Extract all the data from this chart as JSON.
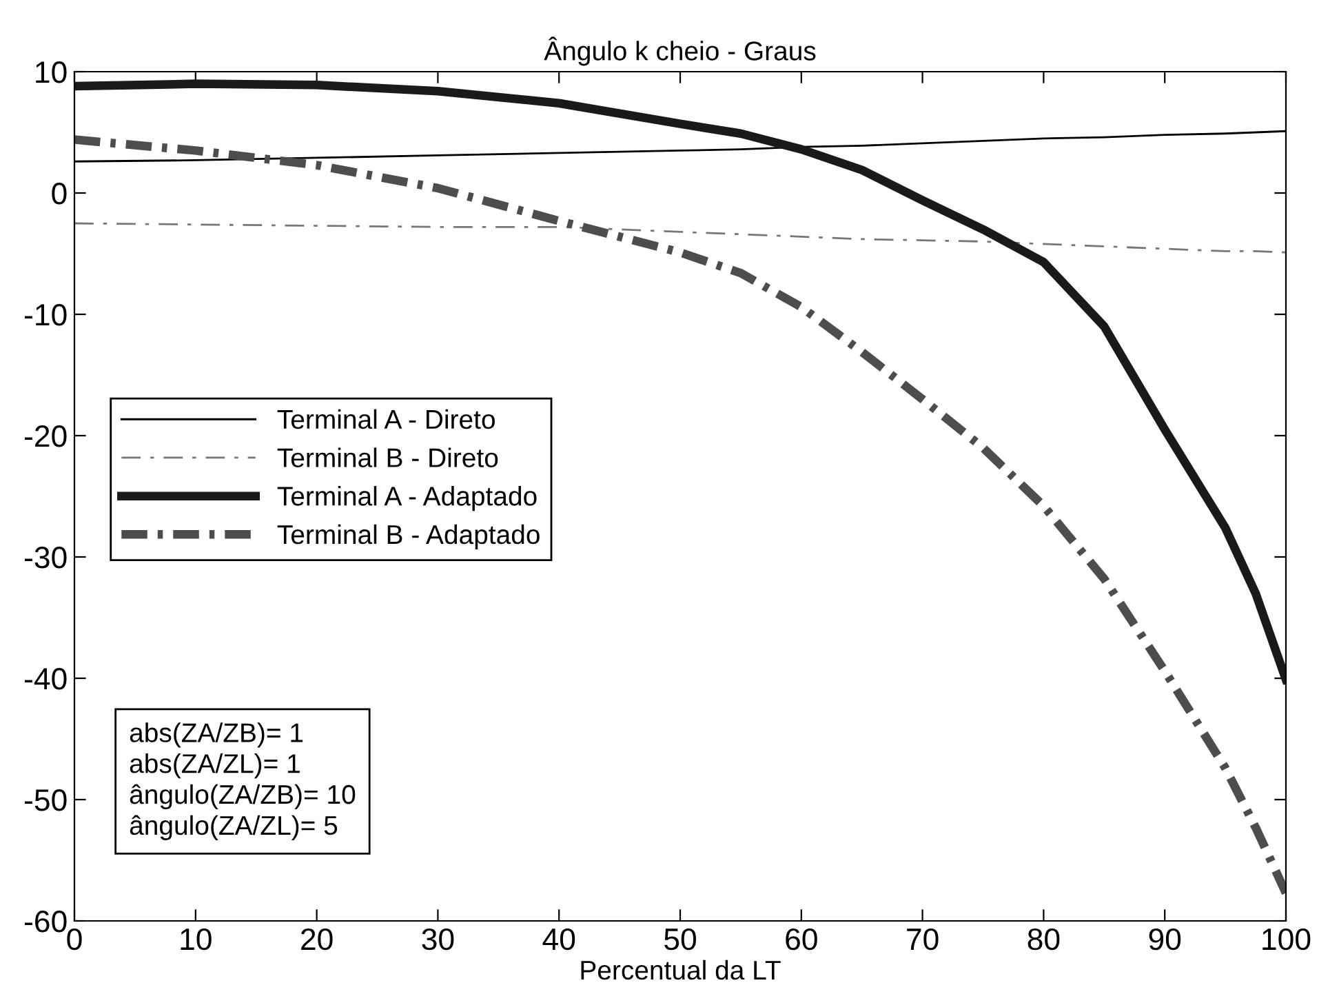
{
  "chart_data": {
    "type": "line",
    "title": "Ângulo k cheio - Graus",
    "xlabel": "Percentual da LT",
    "x": [
      0,
      10,
      20,
      30,
      40,
      50,
      55,
      60,
      65,
      70,
      75,
      80,
      85,
      90,
      95,
      97.5,
      100
    ],
    "series": [
      {
        "name": "Terminal A - Direto",
        "color": "#000000",
        "line_style": "solid",
        "values": [
          2.6,
          2.7,
          2.9,
          3.1,
          3.3,
          3.5,
          3.6,
          3.8,
          3.9,
          4.1,
          4.3,
          4.5,
          4.6,
          4.8,
          4.9,
          5.0,
          5.1
        ]
      },
      {
        "name": "Terminal B - Direto",
        "color": "#777777",
        "line_style": "dashdot",
        "values": [
          -2.5,
          -2.6,
          -2.7,
          -2.8,
          -2.8,
          -3.2,
          -3.4,
          -3.6,
          -3.8,
          -3.9,
          -4.0,
          -4.2,
          -4.4,
          -4.6,
          -4.8,
          -4.8,
          -4.9
        ]
      },
      {
        "name": "Terminal A - Adaptado",
        "color": "#1a1a1a",
        "line_style": "solid",
        "values": [
          8.8,
          9.0,
          8.9,
          8.4,
          7.4,
          5.7,
          4.9,
          3.6,
          1.9,
          -0.6,
          -3.0,
          -5.7,
          -11.0,
          -19.5,
          -27.6,
          -33.0,
          -40.1
        ]
      },
      {
        "name": "Terminal B - Adaptado",
        "color": "#4d4d4d",
        "line_style": "dashdot",
        "values": [
          4.4,
          3.5,
          2.3,
          0.4,
          -2.3,
          -4.9,
          -6.6,
          -9.4,
          -13.1,
          -17.0,
          -21.0,
          -25.8,
          -31.8,
          -39.4,
          -47.4,
          -52.3,
          -57.7
        ]
      }
    ],
    "xlim": [
      0,
      100
    ],
    "xticks": [
      0,
      10,
      20,
      30,
      40,
      50,
      60,
      70,
      80,
      90,
      100
    ],
    "ylim": [
      -60,
      10
    ],
    "yticks": [
      -60,
      -50,
      -40,
      -30,
      -20,
      -10,
      0,
      10
    ],
    "grid": false,
    "legend": "left",
    "annotations": [
      "abs(ZA/ZB)= 1\nabs(ZA/ZL)= 1\nângulo(ZA/ZB)= 10\nângulo(ZA/ZL)= 5"
    ]
  }
}
